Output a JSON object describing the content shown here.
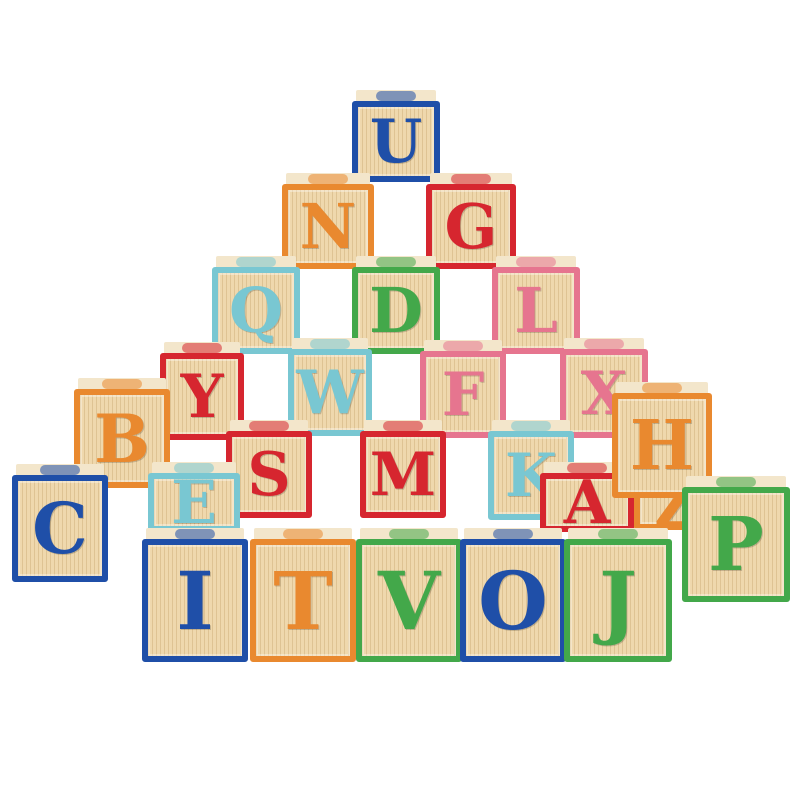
{
  "blocks": [
    {
      "letter": "U",
      "color": "#1f4fa8"
    },
    {
      "letter": "N",
      "color": "#e9892f"
    },
    {
      "letter": "G",
      "color": "#d6262f"
    },
    {
      "letter": "Q",
      "color": "#79c7d2"
    },
    {
      "letter": "D",
      "color": "#43a84a"
    },
    {
      "letter": "L",
      "color": "#e6758f"
    },
    {
      "letter": "Y",
      "color": "#d6262f"
    },
    {
      "letter": "W",
      "color": "#79c7d2"
    },
    {
      "letter": "F",
      "color": "#e6758f"
    },
    {
      "letter": "X",
      "color": "#e6758f"
    },
    {
      "letter": "B",
      "color": "#e9892f"
    },
    {
      "letter": "S",
      "color": "#d6262f"
    },
    {
      "letter": "M",
      "color": "#d6262f"
    },
    {
      "letter": "K",
      "color": "#79c7d2"
    },
    {
      "letter": "H",
      "color": "#e9892f"
    },
    {
      "letter": "C",
      "color": "#1f4fa8"
    },
    {
      "letter": "E",
      "color": "#79c7d2"
    },
    {
      "letter": "A",
      "color": "#d6262f"
    },
    {
      "letter": "Z",
      "color": "#e9892f"
    },
    {
      "letter": "P",
      "color": "#43a84a"
    },
    {
      "letter": "I",
      "color": "#1f4fa8"
    },
    {
      "letter": "T",
      "color": "#e9892f"
    },
    {
      "letter": "V",
      "color": "#43a84a"
    },
    {
      "letter": "O",
      "color": "#1f4fa8"
    },
    {
      "letter": "J",
      "color": "#43a84a"
    }
  ],
  "background": "#ffffff"
}
